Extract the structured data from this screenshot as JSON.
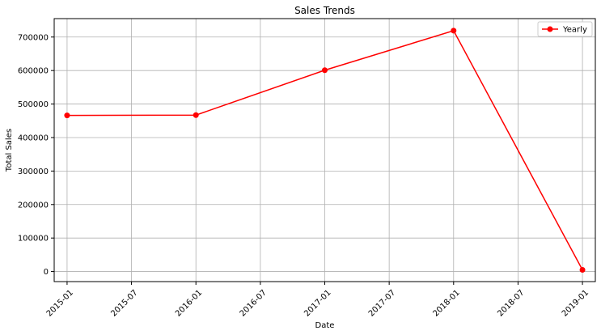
{
  "chart_data": {
    "type": "line",
    "title": "Sales Trends",
    "xlabel": "Date",
    "ylabel": "Total Sales",
    "x_ticks": [
      "2015-01",
      "2015-07",
      "2016-01",
      "2016-07",
      "2017-01",
      "2017-07",
      "2018-01",
      "2018-07",
      "2019-01"
    ],
    "y_ticks": [
      0,
      100000,
      200000,
      300000,
      400000,
      500000,
      600000,
      700000
    ],
    "ylim": [
      -30000,
      755000
    ],
    "grid": true,
    "legend_position": "top-right",
    "series_color": "#ff0000",
    "series": [
      {
        "name": "Yearly",
        "x": [
          "2015-01",
          "2016-01",
          "2017-01",
          "2018-01",
          "2019-01"
        ],
        "values": [
          466000,
          467000,
          601000,
          719000,
          5000
        ]
      }
    ]
  }
}
